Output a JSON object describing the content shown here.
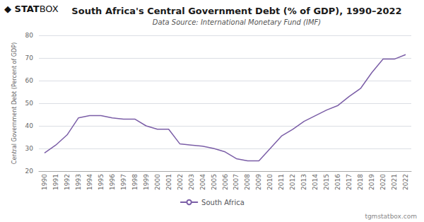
{
  "chart_data": {
    "type": "line",
    "title": "South Africa's Central Government Debt (% of GDP), 1990–2022",
    "subtitle": "Data Source: International Monetary Fund (IMF)",
    "ylabel": "Central Government Debt (Percent of GDP)",
    "annotations": [
      "◆",
      "STAT",
      "BOX",
      "tgmstatbox.com"
    ],
    "categories": [
      1990,
      1991,
      1992,
      1993,
      1994,
      1995,
      1996,
      1997,
      1998,
      1999,
      2000,
      2001,
      2002,
      2003,
      2004,
      2005,
      2006,
      2007,
      2008,
      2009,
      2010,
      2011,
      2012,
      2013,
      2014,
      2015,
      2016,
      2017,
      2018,
      2019,
      2020,
      2021,
      2022
    ],
    "series": [
      {
        "name": "South Africa",
        "color": "#7b5ea7",
        "values": [
          28.0,
          31.5,
          36.0,
          43.5,
          44.5,
          44.5,
          43.5,
          43.0,
          43.0,
          40.0,
          38.5,
          38.5,
          32.0,
          31.5,
          31.0,
          30.0,
          28.5,
          25.5,
          24.5,
          24.5,
          30.0,
          35.5,
          38.5,
          42.0,
          44.5,
          47.0,
          49.0,
          53.0,
          56.5,
          63.5,
          69.5,
          69.5,
          71.5
        ]
      }
    ],
    "ylim": [
      20,
      80
    ],
    "yticks": [
      20,
      30,
      40,
      50,
      60,
      70,
      80
    ],
    "grid": true,
    "legend": "bottom"
  }
}
